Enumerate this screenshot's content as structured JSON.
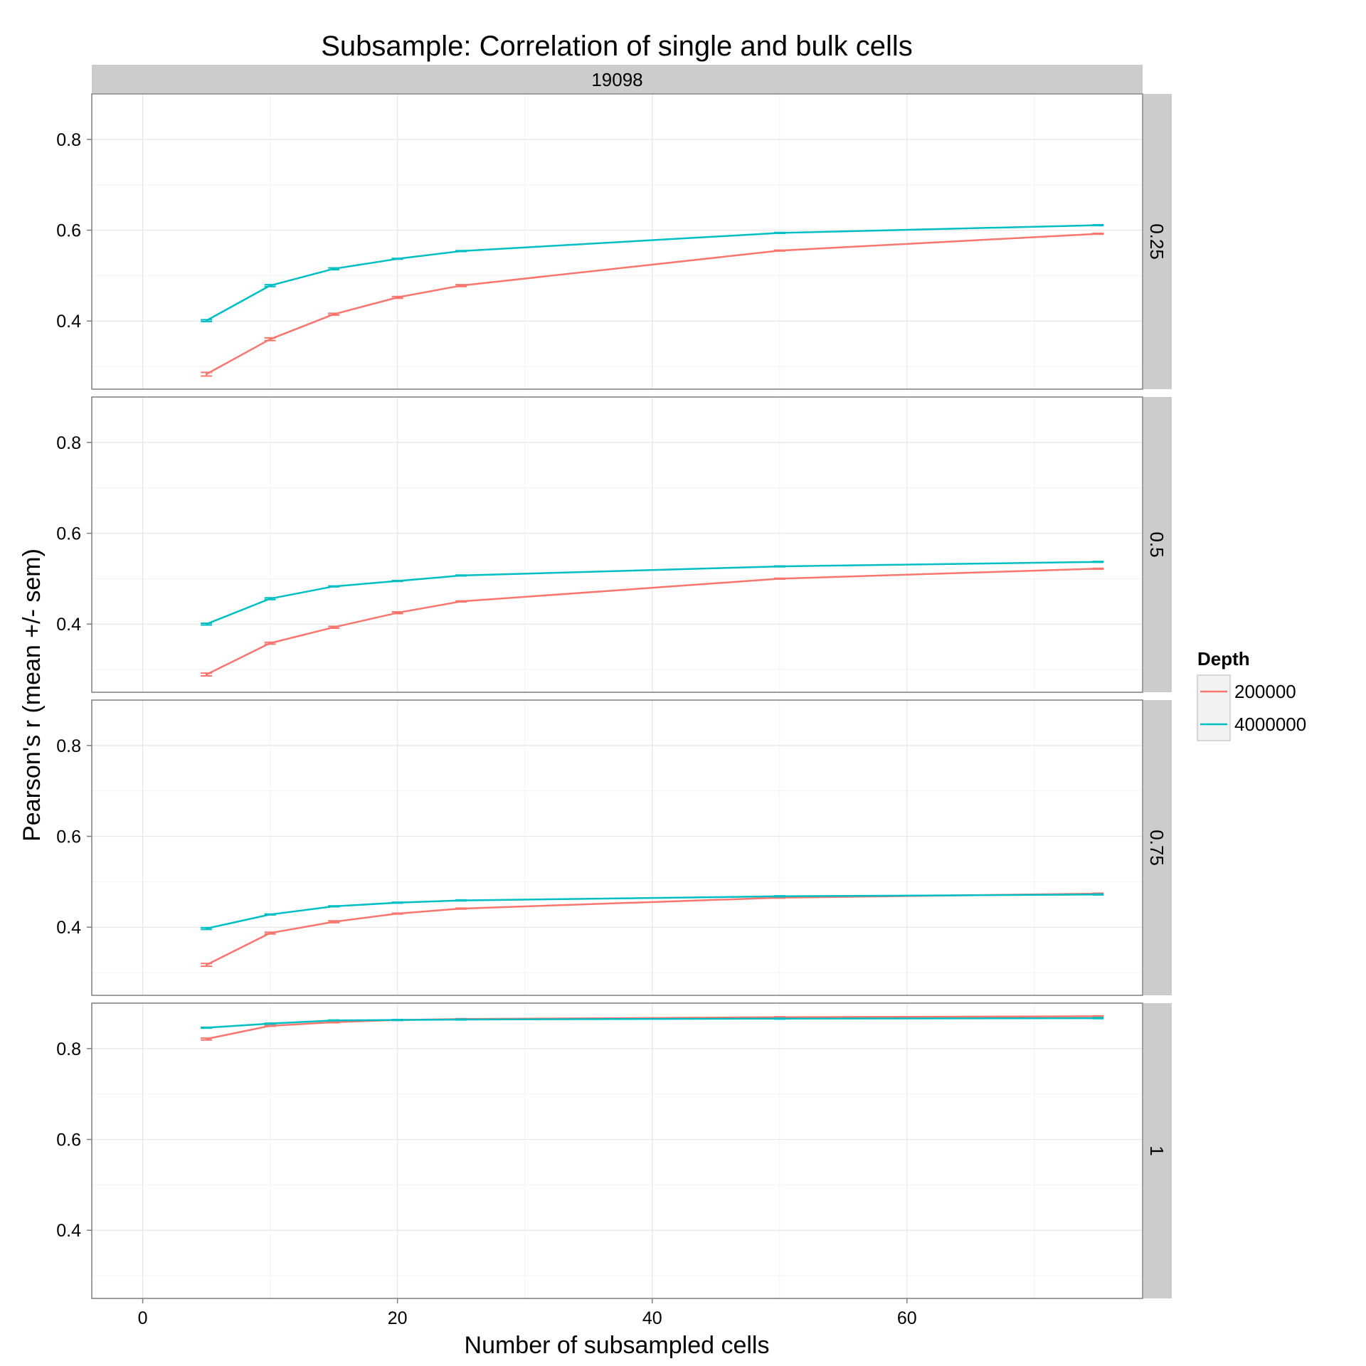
{
  "chart_data": {
    "type": "line",
    "title": "Subsample: Correlation of single and bulk cells",
    "xlabel": "Number of subsampled cells",
    "ylabel": "Pearson's r (mean +/- sem)",
    "column_strip": "19098",
    "xlim": [
      -4,
      78.5
    ],
    "ylim": [
      0.25,
      0.9
    ],
    "x_ticks": [
      0,
      20,
      40,
      60
    ],
    "x_tick_labels": [
      "0",
      "20",
      "40",
      "60"
    ],
    "y_ticks": [
      0.4,
      0.6,
      0.8
    ],
    "y_tick_labels": [
      "0.4",
      "0.6",
      "0.8"
    ],
    "grid": true,
    "legend": {
      "title": "Depth",
      "position": "right",
      "entries": [
        {
          "label": "200000",
          "color": "#F8766D"
        },
        {
          "label": "4000000",
          "color": "#00BFC4"
        }
      ]
    },
    "panels": [
      {
        "strip": "0.25",
        "series": [
          {
            "name": "200000",
            "color": "#F8766D",
            "x": [
              5,
              10,
              15,
              20,
              25,
              50,
              75
            ],
            "y": [
              0.283,
              0.36,
              0.415,
              0.452,
              0.478,
              0.555,
              0.592
            ],
            "sem": [
              0.004,
              0.003,
              0.002,
              0.002,
              0.002,
              0.001,
              0.001
            ]
          },
          {
            "name": "4000000",
            "color": "#00BFC4",
            "x": [
              5,
              10,
              15,
              20,
              25,
              50,
              75
            ],
            "y": [
              0.401,
              0.478,
              0.515,
              0.537,
              0.554,
              0.594,
              0.611
            ],
            "sem": [
              0.002,
              0.002,
              0.002,
              0.001,
              0.001,
              0.001,
              0.001
            ]
          }
        ]
      },
      {
        "strip": "0.5",
        "series": [
          {
            "name": "200000",
            "color": "#F8766D",
            "x": [
              5,
              10,
              15,
              20,
              25,
              50,
              75
            ],
            "y": [
              0.289,
              0.358,
              0.393,
              0.425,
              0.45,
              0.5,
              0.522
            ],
            "sem": [
              0.003,
              0.002,
              0.002,
              0.002,
              0.001,
              0.001,
              0.001
            ]
          },
          {
            "name": "4000000",
            "color": "#00BFC4",
            "x": [
              5,
              10,
              15,
              20,
              25,
              50,
              75
            ],
            "y": [
              0.4,
              0.456,
              0.483,
              0.495,
              0.507,
              0.527,
              0.537
            ],
            "sem": [
              0.002,
              0.002,
              0.001,
              0.001,
              0.001,
              0.001,
              0.001
            ]
          }
        ]
      },
      {
        "strip": "0.75",
        "series": [
          {
            "name": "200000",
            "color": "#F8766D",
            "x": [
              5,
              10,
              15,
              20,
              25,
              50,
              75
            ],
            "y": [
              0.317,
              0.387,
              0.412,
              0.43,
              0.441,
              0.465,
              0.474
            ],
            "sem": [
              0.003,
              0.002,
              0.002,
              0.001,
              0.001,
              0.001,
              0.001
            ]
          },
          {
            "name": "4000000",
            "color": "#00BFC4",
            "x": [
              5,
              10,
              15,
              20,
              25,
              50,
              75
            ],
            "y": [
              0.397,
              0.428,
              0.446,
              0.454,
              0.459,
              0.468,
              0.472
            ],
            "sem": [
              0.002,
              0.001,
              0.001,
              0.001,
              0.001,
              0.001,
              0.001
            ]
          }
        ]
      },
      {
        "strip": "1",
        "series": [
          {
            "name": "200000",
            "color": "#F8766D",
            "x": [
              5,
              10,
              15,
              20,
              25,
              50,
              75
            ],
            "y": [
              0.821,
              0.85,
              0.858,
              0.863,
              0.865,
              0.869,
              0.871
            ],
            "sem": [
              0.002,
              0.001,
              0.001,
              0.001,
              0.001,
              0.001,
              0.001
            ]
          },
          {
            "name": "4000000",
            "color": "#00BFC4",
            "x": [
              5,
              10,
              15,
              20,
              25,
              50,
              75
            ],
            "y": [
              0.846,
              0.855,
              0.862,
              0.863,
              0.864,
              0.866,
              0.867
            ],
            "sem": [
              0.001,
              0.001,
              0.001,
              0.001,
              0.001,
              0.001,
              0.001
            ]
          }
        ]
      }
    ]
  }
}
